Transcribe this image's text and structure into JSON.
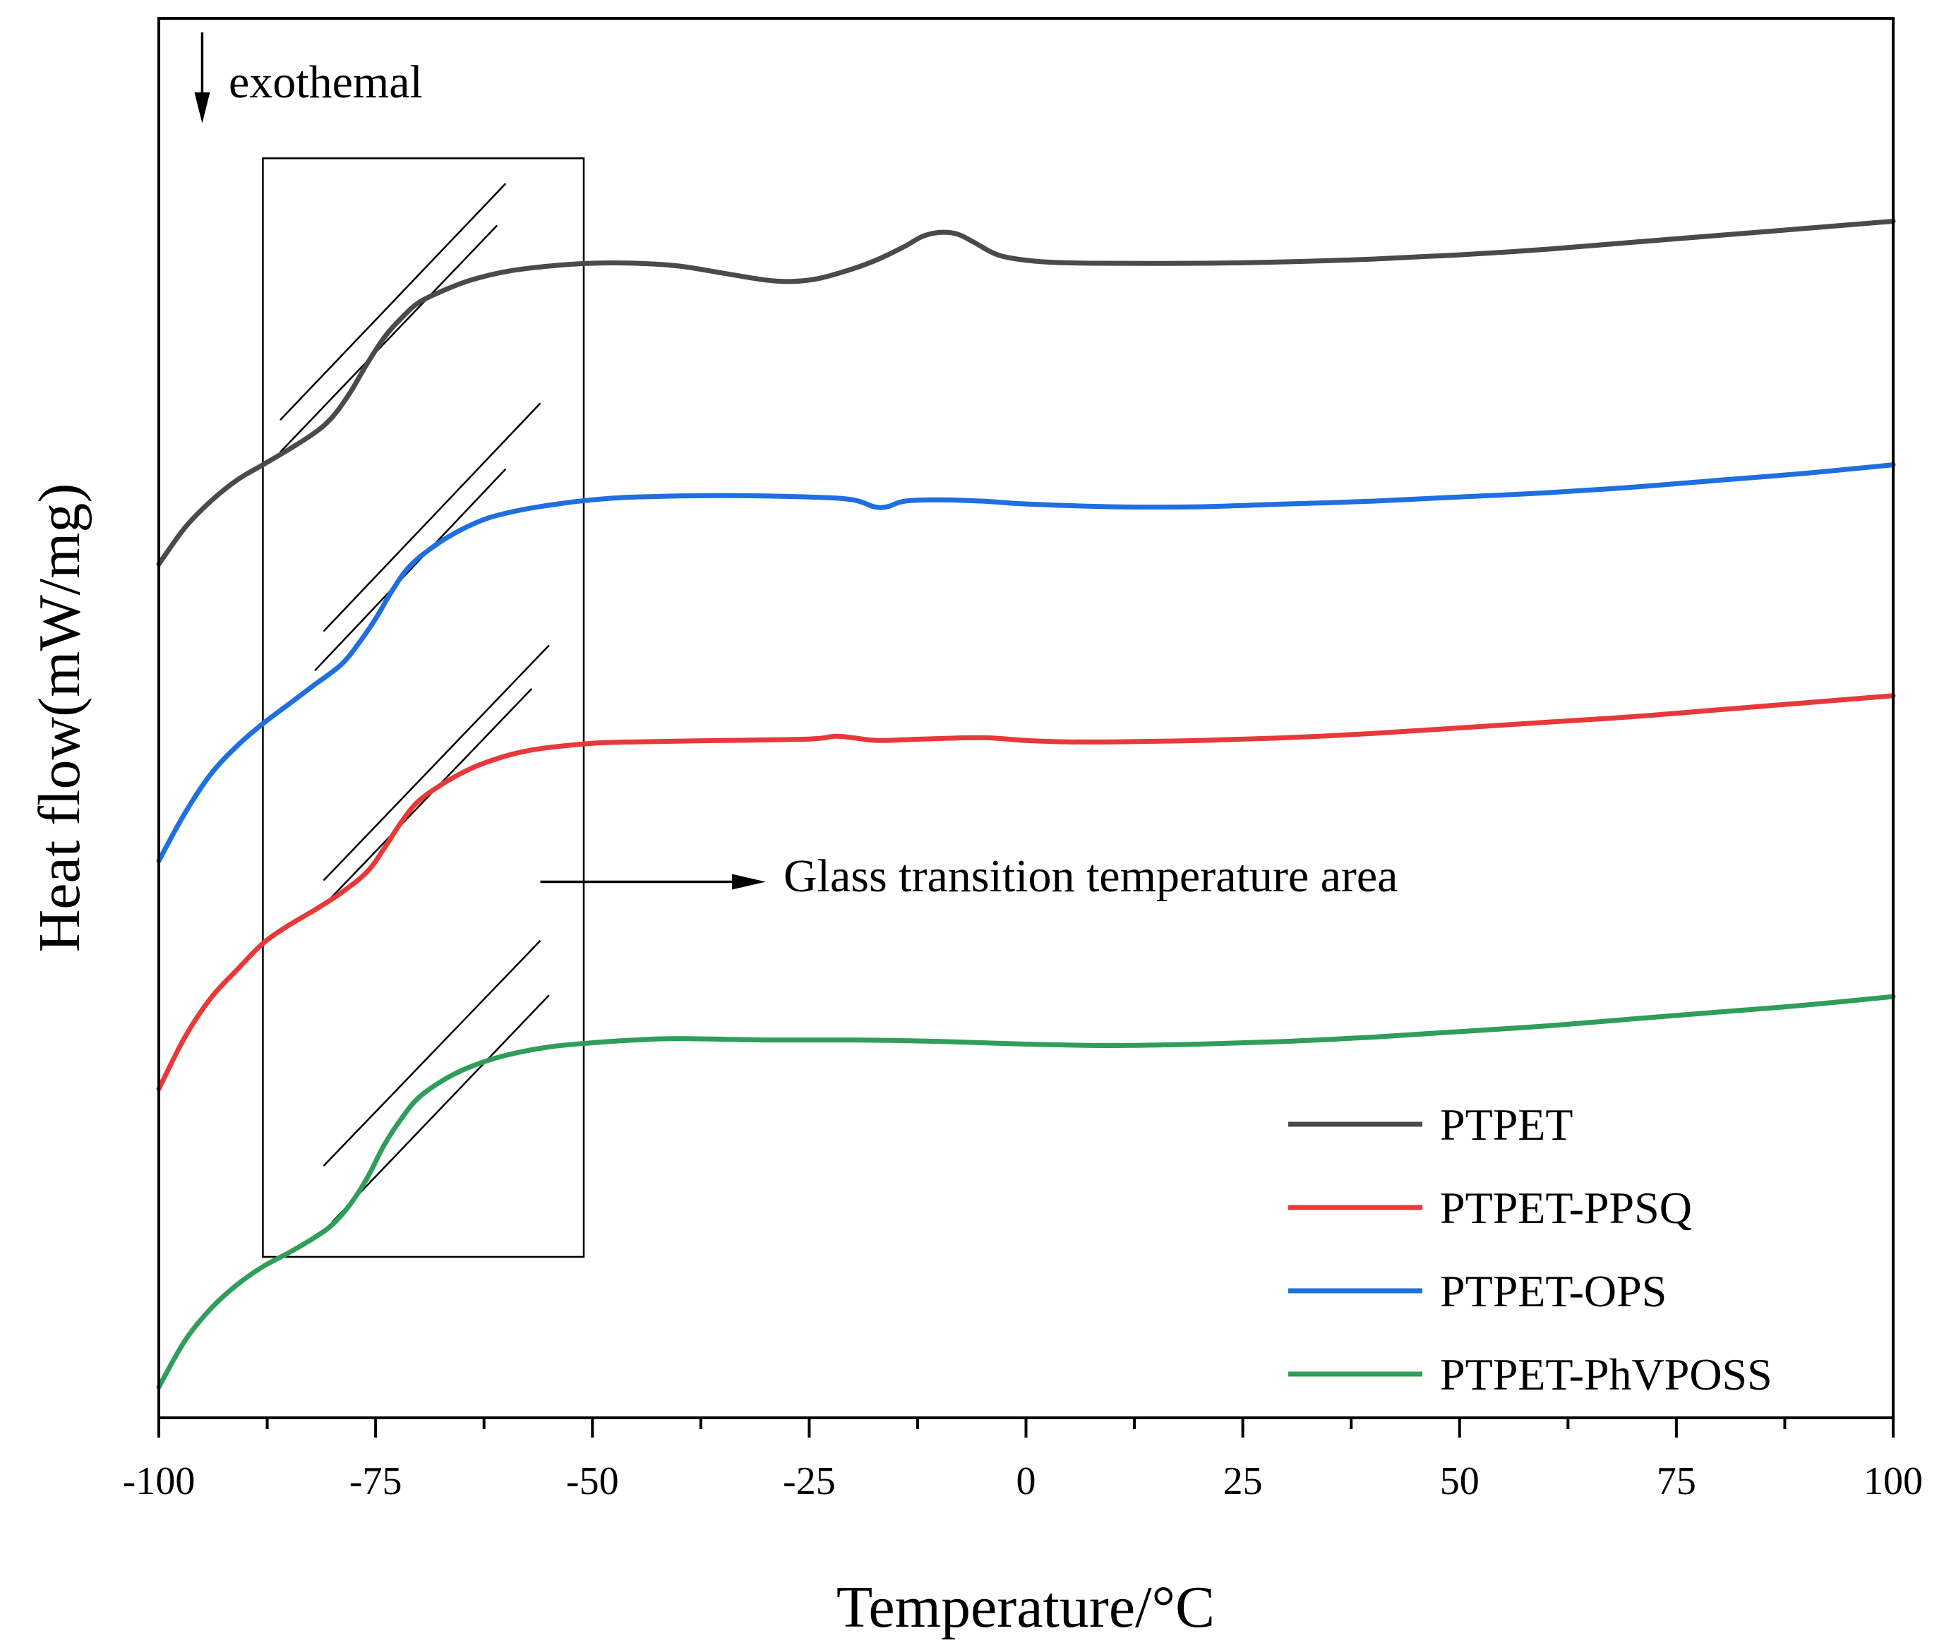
{
  "chart_data": {
    "type": "line",
    "title": "",
    "xlabel": "Temperature/°C",
    "ylabel": "Heat flow(mW/mg)",
    "xlim": [
      -100,
      100
    ],
    "ylim": [
      0,
      100
    ],
    "y_units": "arbitrary (offset curves, no y tick labels)",
    "x_ticks": [
      -100,
      -75,
      -50,
      -25,
      0,
      25,
      50,
      75,
      100
    ],
    "x_tick_labels": [
      "-100",
      "-75",
      "-50",
      "-25",
      "0",
      "25",
      "50",
      "75",
      "100"
    ],
    "grid": false,
    "legend_position": "bottom-right",
    "series": [
      {
        "name": "PTPET",
        "color": "#4a4a4a",
        "points": [
          [
            -100,
            61
          ],
          [
            -97,
            63.6
          ],
          [
            -94,
            65.5
          ],
          [
            -91,
            67
          ],
          [
            -88,
            68.1
          ],
          [
            -85,
            69.2
          ],
          [
            -82,
            70.4
          ],
          [
            -80,
            71.5
          ],
          [
            -78,
            73.2
          ],
          [
            -76,
            75.3
          ],
          [
            -74,
            77.2
          ],
          [
            -72,
            78.6
          ],
          [
            -70,
            79.7
          ],
          [
            -67,
            80.6
          ],
          [
            -64,
            81.3
          ],
          [
            -60,
            81.9
          ],
          [
            -55,
            82.3
          ],
          [
            -50,
            82.5
          ],
          [
            -45,
            82.5
          ],
          [
            -40,
            82.3
          ],
          [
            -35,
            81.8
          ],
          [
            -30,
            81.3
          ],
          [
            -27,
            81.2
          ],
          [
            -24,
            81.4
          ],
          [
            -20,
            82.1
          ],
          [
            -17,
            82.8
          ],
          [
            -14,
            83.7
          ],
          [
            -12,
            84.4
          ],
          [
            -10,
            84.7
          ],
          [
            -8,
            84.6
          ],
          [
            -6,
            84
          ],
          [
            -4,
            83.3
          ],
          [
            -2,
            82.9
          ],
          [
            2,
            82.6
          ],
          [
            8,
            82.5
          ],
          [
            20,
            82.5
          ],
          [
            30,
            82.6
          ],
          [
            40,
            82.8
          ],
          [
            50,
            83.1
          ],
          [
            60,
            83.5
          ],
          [
            70,
            84
          ],
          [
            80,
            84.5
          ],
          [
            90,
            85
          ],
          [
            100,
            85.5
          ]
        ]
      },
      {
        "name": "PTPET-PPSQ",
        "color": "#e8393a",
        "points": [
          [
            -100,
            23.5
          ],
          [
            -97,
            27.2
          ],
          [
            -94,
            30
          ],
          [
            -91,
            32
          ],
          [
            -88,
            33.9
          ],
          [
            -85,
            35.2
          ],
          [
            -82,
            36.3
          ],
          [
            -79,
            37.5
          ],
          [
            -76,
            39
          ],
          [
            -74,
            40.7
          ],
          [
            -72,
            42.6
          ],
          [
            -70,
            44.1
          ],
          [
            -67,
            45.4
          ],
          [
            -64,
            46.4
          ],
          [
            -61,
            47.1
          ],
          [
            -58,
            47.6
          ],
          [
            -55,
            47.9
          ],
          [
            -50,
            48.2
          ],
          [
            -45,
            48.3
          ],
          [
            -35,
            48.4
          ],
          [
            -25,
            48.5
          ],
          [
            -22,
            48.7
          ],
          [
            -20,
            48.6
          ],
          [
            -17,
            48.4
          ],
          [
            -12,
            48.5
          ],
          [
            -5,
            48.6
          ],
          [
            0,
            48.4
          ],
          [
            5,
            48.3
          ],
          [
            10,
            48.3
          ],
          [
            20,
            48.4
          ],
          [
            30,
            48.6
          ],
          [
            40,
            48.9
          ],
          [
            50,
            49.3
          ],
          [
            60,
            49.7
          ],
          [
            70,
            50.1
          ],
          [
            80,
            50.6
          ],
          [
            90,
            51.1
          ],
          [
            100,
            51.6
          ]
        ]
      },
      {
        "name": "PTPET-OPS",
        "color": "#1e6fe0",
        "points": [
          [
            -100,
            39.8
          ],
          [
            -97,
            43.2
          ],
          [
            -94,
            46
          ],
          [
            -91,
            48
          ],
          [
            -88,
            49.6
          ],
          [
            -85,
            51
          ],
          [
            -82,
            52.4
          ],
          [
            -79,
            53.8
          ],
          [
            -77,
            55.3
          ],
          [
            -75,
            57.1
          ],
          [
            -73,
            59.2
          ],
          [
            -71,
            60.9
          ],
          [
            -68,
            62.4
          ],
          [
            -65,
            63.5
          ],
          [
            -62,
            64.3
          ],
          [
            -58,
            64.9
          ],
          [
            -54,
            65.3
          ],
          [
            -50,
            65.6
          ],
          [
            -45,
            65.8
          ],
          [
            -35,
            65.9
          ],
          [
            -25,
            65.8
          ],
          [
            -20,
            65.6
          ],
          [
            -17.5,
            65.1
          ],
          [
            -16,
            65.1
          ],
          [
            -14,
            65.5
          ],
          [
            -10,
            65.6
          ],
          [
            -5,
            65.5
          ],
          [
            0,
            65.3
          ],
          [
            10,
            65.1
          ],
          [
            20,
            65.1
          ],
          [
            30,
            65.3
          ],
          [
            40,
            65.5
          ],
          [
            50,
            65.8
          ],
          [
            60,
            66.1
          ],
          [
            70,
            66.5
          ],
          [
            80,
            67
          ],
          [
            90,
            67.5
          ],
          [
            100,
            68.1
          ]
        ]
      },
      {
        "name": "PTPET-PhVPOSS",
        "color": "#2e9e5a",
        "points": [
          [
            -100,
            2.2
          ],
          [
            -97,
            5.5
          ],
          [
            -94,
            7.8
          ],
          [
            -91,
            9.5
          ],
          [
            -88,
            10.8
          ],
          [
            -85,
            11.8
          ],
          [
            -82,
            12.9
          ],
          [
            -80,
            13.8
          ],
          [
            -78,
            15.2
          ],
          [
            -76,
            17.1
          ],
          [
            -74,
            19.5
          ],
          [
            -72,
            21.4
          ],
          [
            -70,
            22.9
          ],
          [
            -67,
            24.2
          ],
          [
            -64,
            25.1
          ],
          [
            -60,
            25.9
          ],
          [
            -55,
            26.5
          ],
          [
            -50,
            26.8
          ],
          [
            -45,
            27
          ],
          [
            -40,
            27.1
          ],
          [
            -30,
            27
          ],
          [
            -20,
            27
          ],
          [
            -10,
            26.9
          ],
          [
            0,
            26.7
          ],
          [
            10,
            26.6
          ],
          [
            20,
            26.7
          ],
          [
            30,
            26.9
          ],
          [
            40,
            27.2
          ],
          [
            50,
            27.6
          ],
          [
            60,
            28
          ],
          [
            70,
            28.5
          ],
          [
            80,
            29
          ],
          [
            90,
            29.5
          ],
          [
            100,
            30.1
          ]
        ]
      }
    ],
    "tangent_lines": [
      {
        "x1": -86,
        "y1": 71.3,
        "x2": -60,
        "y2": 88.2
      },
      {
        "x1": -86,
        "y1": 69,
        "x2": -61,
        "y2": 85.2
      },
      {
        "x1": -81,
        "y1": 56.2,
        "x2": -56,
        "y2": 72.5
      },
      {
        "x1": -82,
        "y1": 53.4,
        "x2": -60,
        "y2": 67.8
      },
      {
        "x1": -81,
        "y1": 38.4,
        "x2": -55,
        "y2": 55.2
      },
      {
        "x1": -81,
        "y1": 36.6,
        "x2": -57,
        "y2": 52.1
      },
      {
        "x1": -81,
        "y1": 18,
        "x2": -56,
        "y2": 34.1
      },
      {
        "x1": -80,
        "y1": 14,
        "x2": -55,
        "y2": 30.2
      }
    ],
    "annotations": {
      "exothermal_label": "exothemal",
      "exothermal_arrow_x": -95,
      "exothermal_arrow_y_from": 99,
      "exothermal_arrow_y_to": 92.5,
      "box_x_range": [
        -88,
        -51
      ],
      "box_y_range": [
        11.5,
        90
      ],
      "area_label": "Glass transition temperature area",
      "area_arrow_x_from": -56,
      "area_arrow_x_to": -30,
      "area_arrow_y": 38.3
    }
  }
}
